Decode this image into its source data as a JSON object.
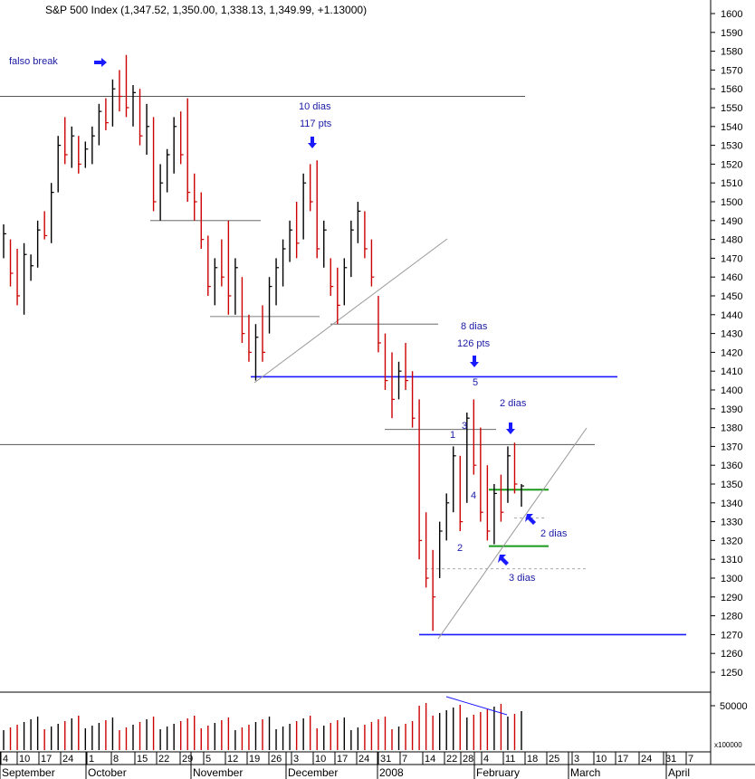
{
  "chart_data": {
    "type": "ohlc",
    "title": "S&P 500 Index (1,347.52, 1,350.00, 1,338.13, 1,349.99, +1.13000)",
    "y_range": [
      1240,
      1605
    ],
    "y_ticks": [
      1250,
      1260,
      1270,
      1280,
      1290,
      1300,
      1310,
      1320,
      1330,
      1340,
      1350,
      1360,
      1370,
      1380,
      1390,
      1400,
      1410,
      1420,
      1430,
      1440,
      1450,
      1460,
      1470,
      1480,
      1490,
      1500,
      1510,
      1520,
      1530,
      1540,
      1550,
      1560,
      1570,
      1580,
      1590,
      1600
    ],
    "x_axis": {
      "day_ticks": [
        "4",
        "10",
        "17",
        "24",
        "1",
        "8",
        "15",
        "22",
        "29",
        "5",
        "12",
        "19",
        "26",
        "3",
        "10",
        "17",
        "24",
        "31",
        "7",
        "14",
        "22",
        "28",
        "4",
        "11",
        "18",
        "25",
        "3",
        "10",
        "17",
        "24",
        "31",
        "7"
      ],
      "months": [
        "September",
        "October",
        "November",
        "December",
        "2008",
        "February",
        "March",
        "April"
      ]
    },
    "volume": {
      "unit_label": "x100000",
      "tick_label": "50000"
    },
    "horizontal_levels": [
      {
        "price": 1556,
        "color": "#555555"
      },
      {
        "price": 1371,
        "color": "#555555"
      },
      {
        "price": 1490,
        "color": "#555555"
      },
      {
        "price": 1439,
        "color": "#555555"
      },
      {
        "price": 1435,
        "color": "#555555"
      },
      {
        "price": 1379,
        "color": "#555555"
      },
      {
        "price": 1407,
        "color": "#1a1aff"
      },
      {
        "price": 1270,
        "color": "#1a1aff"
      },
      {
        "price": 1347,
        "color": "#1a9a1a"
      },
      {
        "price": 1317,
        "color": "#1a9a1a"
      }
    ],
    "annotations": {
      "falso_break": "falso break",
      "dias10": "10 dias",
      "pts117": "117 pts",
      "dias8": "8 dias",
      "pts126": "126 pts",
      "dias2a": "2 dias",
      "dias2b": "2 dias",
      "dias3": "3 dias",
      "wave1": "1",
      "wave2": "2",
      "wave3": "3",
      "wave4": "4",
      "wave5": "5"
    },
    "colors": {
      "up": "#000000",
      "down": "#cc0000",
      "blue": "#1a1aff",
      "green": "#1a9a1a"
    }
  }
}
